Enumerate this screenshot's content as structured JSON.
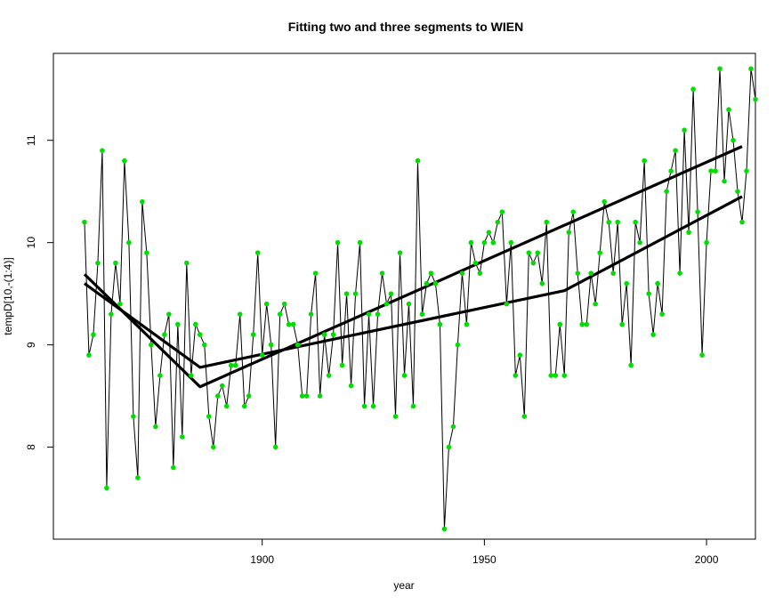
{
  "chart_data": {
    "type": "line",
    "title": "Fitting two and three segments to WIEN",
    "xlabel": "year",
    "ylabel": "tempD[10,-(1:4)]",
    "xlim": [
      1853,
      2011
    ],
    "ylim": [
      7.1,
      11.85
    ],
    "x_ticks": [
      1900,
      1950,
      2000
    ],
    "y_ticks": [
      8,
      9,
      10,
      11
    ],
    "grid": false,
    "point_color": "#00dd00",
    "line_color": "#000000",
    "series": [
      {
        "type": "line+points",
        "x_start": 1860,
        "values": [
          10.2,
          8.9,
          9.1,
          9.8,
          10.9,
          7.6,
          9.3,
          9.8,
          9.4,
          10.8,
          10.0,
          8.3,
          7.7,
          10.4,
          9.9,
          9.0,
          8.2,
          8.7,
          9.1,
          9.3,
          7.8,
          9.2,
          8.1,
          9.8,
          8.7,
          9.2,
          9.1,
          9.0,
          8.3,
          8.0,
          8.5,
          8.6,
          8.4,
          8.8,
          8.8,
          9.3,
          8.4,
          8.5,
          9.1,
          9.9,
          8.9,
          9.4,
          9.0,
          8.0,
          9.3,
          9.4,
          9.2,
          9.2,
          9.0,
          8.5,
          8.5,
          9.3,
          9.7,
          8.5,
          9.1,
          8.7,
          9.1,
          10.0,
          8.8,
          9.5,
          8.6,
          9.5,
          10.0,
          8.4,
          9.3,
          8.4,
          9.3,
          9.7,
          9.4,
          9.5,
          8.3,
          9.9,
          8.7,
          9.4,
          8.4,
          10.8,
          9.3,
          9.6,
          9.7,
          9.6,
          9.2,
          7.2,
          8.0,
          8.2,
          9.0,
          9.7,
          9.2,
          10.0,
          9.8,
          9.7,
          10.0,
          10.1,
          10.0,
          10.2,
          10.3,
          9.4,
          10.0,
          8.7,
          8.9,
          8.3,
          9.9,
          9.8,
          9.9,
          9.6,
          10.2,
          8.7,
          8.7,
          9.2,
          8.7,
          10.1,
          10.3,
          9.7,
          9.2,
          9.2,
          9.7,
          9.4,
          9.9,
          10.4,
          10.2,
          9.7,
          10.2,
          9.2,
          9.6,
          8.8,
          10.2,
          10.0,
          10.8,
          9.5,
          9.1,
          9.6,
          9.3,
          10.5,
          10.7,
          10.9,
          9.7,
          11.1,
          10.1,
          11.5,
          10.3,
          8.9,
          10.0,
          10.7,
          10.7,
          11.7,
          10.6,
          11.3,
          11.0,
          10.5,
          10.2,
          10.7,
          11.7,
          11.4
        ]
      },
      {
        "type": "segments",
        "points": [
          [
            1860,
            9.6
          ],
          [
            1886,
            8.78
          ],
          [
            1968,
            9.53
          ],
          [
            2008,
            10.45
          ]
        ]
      },
      {
        "type": "segments",
        "points": [
          [
            1860,
            9.69
          ],
          [
            1886,
            8.59
          ],
          [
            2008,
            10.94
          ]
        ]
      }
    ]
  }
}
